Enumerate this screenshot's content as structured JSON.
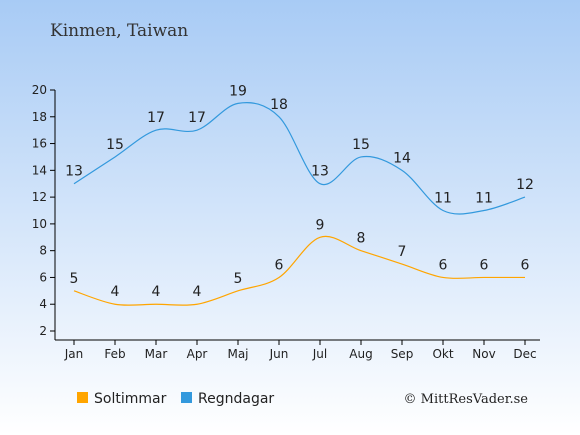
{
  "chart_data": {
    "type": "line",
    "title": "Kinmen, Taiwan",
    "categories": [
      "Jan",
      "Feb",
      "Mar",
      "Apr",
      "Maj",
      "Jun",
      "Jul",
      "Aug",
      "Sep",
      "Okt",
      "Nov",
      "Dec"
    ],
    "series": [
      {
        "name": "Soltimmar",
        "color": "#ffa500",
        "values": [
          5,
          4,
          4,
          4,
          5,
          6,
          9,
          8,
          7,
          6,
          6,
          6
        ]
      },
      {
        "name": "Regndagar",
        "color": "#3399dd",
        "values": [
          13,
          15,
          17,
          17,
          19,
          18,
          13,
          15,
          14,
          11,
          11,
          12
        ]
      }
    ],
    "ylim": [
      2,
      20
    ],
    "yticks": [
      2,
      4,
      6,
      8,
      10,
      12,
      14,
      16,
      18,
      20
    ],
    "grid": false,
    "legend": "bottom-left",
    "background": {
      "top": "#a8cbf5",
      "bottom": "#ffffff"
    }
  },
  "credit": "© MittResVader.se"
}
